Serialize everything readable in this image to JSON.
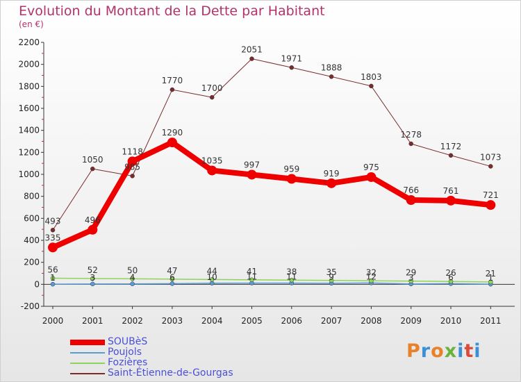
{
  "header": {
    "title": "Evolution du Montant de la Dette par Habitant",
    "subtitle": "(en €)"
  },
  "logo": {
    "text": "Proxiti",
    "colors": [
      "#e8822a",
      "#3a8fd6",
      "#e8822a",
      "#6ab33b",
      "#3a8fd6",
      "#d94b3b",
      "#3a8fd6"
    ]
  },
  "chart_data": {
    "type": "line",
    "title": "Evolution du Montant de la Dette par Habitant",
    "subtitle": "(en €)",
    "xlabel": "",
    "ylabel": "",
    "categories": [
      "2000",
      "2001",
      "2002",
      "2003",
      "2004",
      "2005",
      "2006",
      "2007",
      "2008",
      "2009",
      "2010",
      "2011"
    ],
    "ylim": [
      -200,
      2200
    ],
    "yticks": [
      -200,
      0,
      200,
      400,
      600,
      800,
      1000,
      1200,
      1400,
      1600,
      1800,
      2000,
      2200
    ],
    "grid": false,
    "legend_position": "bottom-left",
    "series": [
      {
        "name": "SOUBèS",
        "color": "#ee0000",
        "values": [
          335,
          496,
          1118,
          1290,
          1035,
          997,
          959,
          919,
          975,
          766,
          761,
          721
        ],
        "labels": [
          "335",
          "496",
          "1118",
          "1290",
          "1035",
          "997",
          "959",
          "919",
          "975",
          "766",
          "761",
          "721"
        ]
      },
      {
        "name": "Poujols",
        "color": "#5b9bd5",
        "values": [
          1,
          3,
          4,
          6,
          10,
          11,
          11,
          9,
          12,
          3,
          6,
          1
        ],
        "labels": [
          "1",
          "3",
          "4",
          "6",
          "10",
          "11",
          "11",
          "9",
          "12",
          "3",
          "6",
          "1"
        ]
      },
      {
        "name": "Fozières",
        "color": "#8fd45a",
        "values": [
          56,
          52,
          50,
          47,
          44,
          41,
          38,
          35,
          32,
          29,
          26,
          21
        ],
        "labels": [
          "56",
          "52",
          "50",
          "47",
          "44",
          "41",
          "38",
          "35",
          "32",
          "29",
          "26",
          "21"
        ]
      },
      {
        "name": "Saint-Étienne-de-Gourgas",
        "color": "#7a2b2b",
        "values": [
          493,
          1050,
          985,
          1770,
          1700,
          2051,
          1971,
          1888,
          1803,
          1278,
          1172,
          1073
        ],
        "labels": [
          "493",
          "1050",
          "985",
          "1770",
          "1700",
          "2051",
          "1971",
          "1888",
          "1803",
          "1278",
          "1172",
          "1073"
        ]
      }
    ]
  }
}
